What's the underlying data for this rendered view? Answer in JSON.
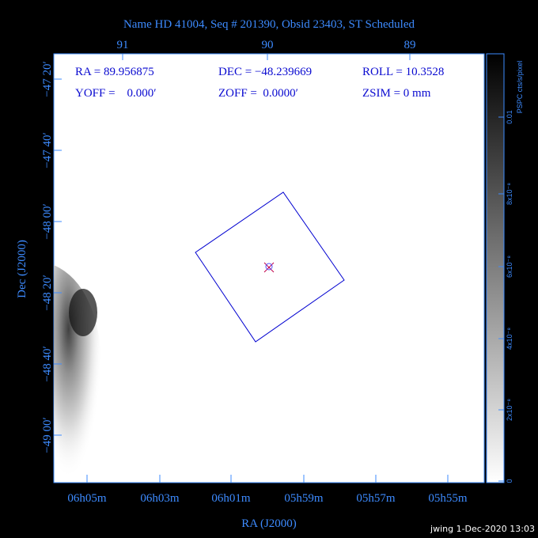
{
  "title": "Name HD 41004, Seq # 201390, Obsid 23403, ST Scheduled",
  "top_axis": {
    "ticks": [
      "91",
      "90",
      "89"
    ]
  },
  "left_axis": {
    "label": "Dec (J2000)",
    "ticks": [
      "−47 20′",
      "−47 40′",
      "−48 00′",
      "−48 20′",
      "−48 40′",
      "−49 00′"
    ]
  },
  "bottom_axis": {
    "label": "RA (J2000)",
    "ticks": [
      "06h05m",
      "06h03m",
      "06h01m",
      "05h59m",
      "05h57m",
      "05h55m"
    ]
  },
  "info": [
    [
      "RA = 89.956875",
      "DEC = −48.239669",
      "ROLL = 10.3528"
    ],
    [
      "YOFF =    0.000′",
      "ZOFF =  0.0000′",
      "ZSIM = 0 mm"
    ]
  ],
  "colorbar": {
    "label": "PSPC cts/s/pixel",
    "ticks": [
      "0",
      "2x10⁻⁸",
      "4x10⁻⁸",
      "6x10⁻⁸",
      "8x10⁻⁸",
      "0.01"
    ]
  },
  "footer": "jwing  1-Dec-2020 13:03"
}
